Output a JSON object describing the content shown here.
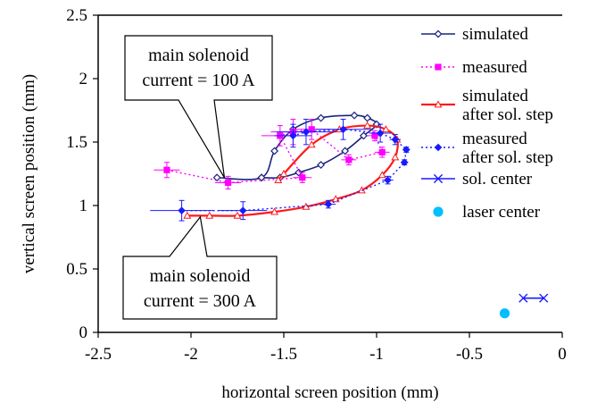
{
  "chart_data": {
    "type": "scatter",
    "title": "",
    "xlabel": "horizontal screen position (mm)",
    "ylabel": "vertical screen position (mm)",
    "xlim": [
      -2.5,
      0
    ],
    "ylim": [
      0,
      2.5
    ],
    "x_ticks": [
      "-2.5",
      "-2",
      "-1.5",
      "-1",
      "-0.5",
      "0"
    ],
    "y_ticks": [
      "0",
      "0.5",
      "1",
      "1.5",
      "2",
      "2.5"
    ],
    "grid": false,
    "legend_position": "right",
    "series": [
      {
        "name": "simulated",
        "color": "#1a237e",
        "style": "solid-line-open-diamond",
        "points": [
          [
            -1.86,
            1.22
          ],
          [
            -1.62,
            1.22
          ],
          [
            -1.55,
            1.43
          ],
          [
            -1.45,
            1.6
          ],
          [
            -1.3,
            1.69
          ],
          [
            -1.12,
            1.71
          ],
          [
            -1.05,
            1.69
          ],
          [
            -1.0,
            1.64
          ],
          [
            -1.07,
            1.55
          ],
          [
            -1.17,
            1.43
          ],
          [
            -1.3,
            1.32
          ],
          [
            -1.42,
            1.26
          ],
          [
            -1.52,
            1.22
          ],
          [
            -1.62,
            1.22
          ]
        ]
      },
      {
        "name": "measured",
        "color": "#ff00ff",
        "style": "dotted-line-filled-square",
        "points": [
          [
            -2.13,
            1.28
          ],
          [
            -1.8,
            1.18
          ],
          [
            -1.4,
            1.22
          ],
          [
            -1.52,
            1.55
          ],
          [
            -1.45,
            1.58
          ],
          [
            -1.35,
            1.6
          ],
          [
            -1.15,
            1.36
          ],
          [
            -0.97,
            1.42
          ],
          [
            -1.01,
            1.55
          ]
        ]
      },
      {
        "name": "simulated after sol. step",
        "color": "#ff1a1a",
        "style": "solid-line-open-triangle",
        "points": [
          [
            -2.02,
            0.92
          ],
          [
            -1.9,
            0.92
          ],
          [
            -1.75,
            0.92
          ],
          [
            -1.55,
            0.95
          ],
          [
            -1.38,
            0.99
          ],
          [
            -1.22,
            1.05
          ],
          [
            -1.08,
            1.12
          ],
          [
            -0.97,
            1.24
          ],
          [
            -0.9,
            1.38
          ],
          [
            -0.89,
            1.52
          ],
          [
            -0.95,
            1.6
          ],
          [
            -1.05,
            1.63
          ],
          [
            -1.2,
            1.6
          ],
          [
            -1.35,
            1.48
          ],
          [
            -1.5,
            1.25
          ],
          [
            -1.53,
            1.2
          ]
        ]
      },
      {
        "name": "measured after sol. step",
        "color": "#1a1aff",
        "style": "dotted-line-filled-diamond",
        "points": [
          [
            -2.05,
            0.96
          ],
          [
            -1.72,
            0.96
          ],
          [
            -1.26,
            1.01
          ],
          [
            -0.94,
            1.2
          ],
          [
            -0.85,
            1.34
          ],
          [
            -0.84,
            1.44
          ],
          [
            -0.9,
            1.52
          ],
          [
            -0.98,
            1.57
          ],
          [
            -1.18,
            1.6
          ],
          [
            -1.38,
            1.58
          ],
          [
            -1.45,
            1.55
          ]
        ]
      },
      {
        "name": "sol. center",
        "color": "#1a1aff",
        "style": "solid-line-x-marker",
        "points": [
          [
            -0.21,
            0.27
          ],
          [
            -0.1,
            0.27
          ]
        ]
      },
      {
        "name": "laser center",
        "color": "#00bfff",
        "style": "filled-circle",
        "points": [
          [
            -0.31,
            0.15
          ]
        ]
      }
    ],
    "annotations": [
      {
        "line1": "main solenoid",
        "line2": "current = 100 A"
      },
      {
        "line1": "main solenoid",
        "line2": "current = 300 A"
      }
    ]
  }
}
